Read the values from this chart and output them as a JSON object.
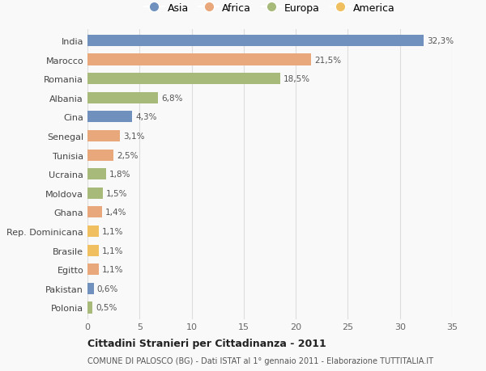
{
  "countries": [
    "India",
    "Marocco",
    "Romania",
    "Albania",
    "Cina",
    "Senegal",
    "Tunisia",
    "Ucraina",
    "Moldova",
    "Ghana",
    "Rep. Dominicana",
    "Brasile",
    "Egitto",
    "Pakistan",
    "Polonia"
  ],
  "values": [
    32.3,
    21.5,
    18.5,
    6.8,
    4.3,
    3.1,
    2.5,
    1.8,
    1.5,
    1.4,
    1.1,
    1.1,
    1.1,
    0.6,
    0.5
  ],
  "labels": [
    "32,3%",
    "21,5%",
    "18,5%",
    "6,8%",
    "4,3%",
    "3,1%",
    "2,5%",
    "1,8%",
    "1,5%",
    "1,4%",
    "1,1%",
    "1,1%",
    "1,1%",
    "0,6%",
    "0,5%"
  ],
  "continents": [
    "Asia",
    "Africa",
    "Europa",
    "Europa",
    "Asia",
    "Africa",
    "Africa",
    "Europa",
    "Europa",
    "Africa",
    "America",
    "America",
    "Africa",
    "Asia",
    "Europa"
  ],
  "colors": {
    "Asia": "#7090be",
    "Africa": "#e8a87c",
    "Europa": "#a8ba7a",
    "America": "#f0c060"
  },
  "legend_order": [
    "Asia",
    "Africa",
    "Europa",
    "America"
  ],
  "title": "Cittadini Stranieri per Cittadinanza - 2011",
  "subtitle": "COMUNE DI PALOSCO (BG) - Dati ISTAT al 1° gennaio 2011 - Elaborazione TUTTITALIA.IT",
  "xlim": [
    0,
    35
  ],
  "xticks": [
    0,
    5,
    10,
    15,
    20,
    25,
    30,
    35
  ],
  "background_color": "#f9f9f9",
  "grid_color": "#dddddd",
  "bar_height": 0.6
}
